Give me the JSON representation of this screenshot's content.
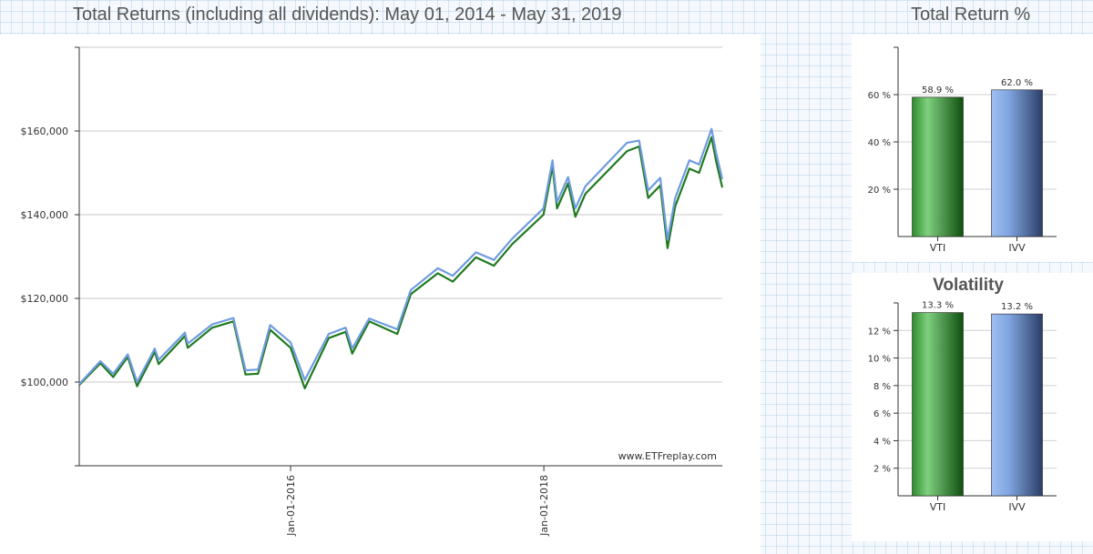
{
  "main": {
    "title": "Total Returns (including all dividends): May 01, 2014 - May 31, 2019",
    "watermark": "www.ETFreplay.com"
  },
  "total_return": {
    "title": "Total Return %"
  },
  "volatility": {
    "title": "Volatility"
  },
  "colors": {
    "VTI": "#1f7a1f",
    "IVV": "#6f9be0"
  },
  "chart_data": [
    {
      "type": "line",
      "title": "Total Returns (including all dividends): May 01, 2014 - May 31, 2019",
      "x_range": [
        "2014-05-01",
        "2019-05-31"
      ],
      "x_ticks": [
        "Jan-01-2016",
        "Jan-01-2018"
      ],
      "y_ticks": [
        100000,
        120000,
        140000,
        160000
      ],
      "y_tick_labels": [
        "$100,000",
        "$120,000",
        "$140,000",
        "$160,000"
      ],
      "ylim": [
        80000,
        180000
      ],
      "grid": true,
      "series": [
        {
          "name": "VTI",
          "points": [
            [
              "2014-05-01",
              99300
            ],
            [
              "2014-07-01",
              104500
            ],
            [
              "2014-08-07",
              101200
            ],
            [
              "2014-09-18",
              106000
            ],
            [
              "2014-10-15",
              99000
            ],
            [
              "2014-12-05",
              107200
            ],
            [
              "2014-12-16",
              104300
            ],
            [
              "2015-03-02",
              111000
            ],
            [
              "2015-03-10",
              108200
            ],
            [
              "2015-05-20",
              113000
            ],
            [
              "2015-07-20",
              114500
            ],
            [
              "2015-08-24",
              101800
            ],
            [
              "2015-09-29",
              102000
            ],
            [
              "2015-11-03",
              112500
            ],
            [
              "2016-01-01",
              108200
            ],
            [
              "2016-02-11",
              98500
            ],
            [
              "2016-04-20",
              110500
            ],
            [
              "2016-06-08",
              112000
            ],
            [
              "2016-06-27",
              106800
            ],
            [
              "2016-08-15",
              114500
            ],
            [
              "2016-11-04",
              111500
            ],
            [
              "2016-12-13",
              121000
            ],
            [
              "2017-03-01",
              126000
            ],
            [
              "2017-04-13",
              124000
            ],
            [
              "2017-06-19",
              129800
            ],
            [
              "2017-08-10",
              127800
            ],
            [
              "2017-10-02",
              133000
            ],
            [
              "2017-12-31",
              140000
            ],
            [
              "2018-01-26",
              151500
            ],
            [
              "2018-02-08",
              141500
            ],
            [
              "2018-03-12",
              147500
            ],
            [
              "2018-04-02",
              139500
            ],
            [
              "2018-05-01",
              145000
            ],
            [
              "2018-08-29",
              155200
            ],
            [
              "2018-10-03",
              156300
            ],
            [
              "2018-10-29",
              144000
            ],
            [
              "2018-12-03",
              147000
            ],
            [
              "2018-12-24",
              132000
            ],
            [
              "2019-01-15",
              142000
            ],
            [
              "2019-02-25",
              151000
            ],
            [
              "2019-03-25",
              150000
            ],
            [
              "2019-04-30",
              158500
            ],
            [
              "2019-05-14",
              152500
            ],
            [
              "2019-05-31",
              146500
            ]
          ]
        },
        {
          "name": "IVV",
          "points": [
            [
              "2014-05-01",
              99500
            ],
            [
              "2014-07-01",
              105000
            ],
            [
              "2014-08-07",
              102000
            ],
            [
              "2014-09-18",
              106600
            ],
            [
              "2014-10-15",
              100000
            ],
            [
              "2014-12-05",
              108000
            ],
            [
              "2014-12-16",
              105300
            ],
            [
              "2015-03-02",
              111800
            ],
            [
              "2015-03-10",
              109200
            ],
            [
              "2015-05-20",
              113800
            ],
            [
              "2015-07-20",
              115300
            ],
            [
              "2015-08-24",
              102800
            ],
            [
              "2015-09-29",
              103000
            ],
            [
              "2015-11-03",
              113600
            ],
            [
              "2016-01-01",
              109500
            ],
            [
              "2016-02-11",
              100500
            ],
            [
              "2016-04-20",
              111500
            ],
            [
              "2016-06-08",
              113000
            ],
            [
              "2016-06-27",
              108000
            ],
            [
              "2016-08-15",
              115200
            ],
            [
              "2016-11-04",
              112600
            ],
            [
              "2016-12-13",
              122000
            ],
            [
              "2017-03-01",
              127200
            ],
            [
              "2017-04-13",
              125400
            ],
            [
              "2017-06-19",
              131000
            ],
            [
              "2017-08-10",
              129200
            ],
            [
              "2017-10-02",
              134300
            ],
            [
              "2017-12-31",
              141500
            ],
            [
              "2018-01-26",
              153000
            ],
            [
              "2018-02-08",
              143000
            ],
            [
              "2018-03-12",
              149000
            ],
            [
              "2018-04-02",
              141500
            ],
            [
              "2018-05-01",
              146800
            ],
            [
              "2018-08-29",
              157200
            ],
            [
              "2018-10-03",
              157700
            ],
            [
              "2018-10-29",
              145800
            ],
            [
              "2018-12-03",
              148800
            ],
            [
              "2018-12-24",
              134000
            ],
            [
              "2019-01-15",
              144000
            ],
            [
              "2019-02-25",
              153000
            ],
            [
              "2019-03-25",
              152000
            ],
            [
              "2019-04-30",
              160500
            ],
            [
              "2019-05-14",
              154500
            ],
            [
              "2019-05-31",
              148500
            ]
          ]
        }
      ]
    },
    {
      "type": "bar",
      "title": "Total Return %",
      "categories": [
        "VTI",
        "IVV"
      ],
      "values": [
        58.9,
        62.0
      ],
      "value_labels": [
        "58.9 %",
        "62.0 %"
      ],
      "y_ticks": [
        20,
        40,
        60
      ],
      "y_tick_labels": [
        "20 %",
        "40 %",
        "60 %"
      ],
      "ylim": [
        0,
        80
      ]
    },
    {
      "type": "bar",
      "title": "Volatility",
      "categories": [
        "VTI",
        "IVV"
      ],
      "values": [
        13.3,
        13.2
      ],
      "value_labels": [
        "13.3 %",
        "13.2 %"
      ],
      "y_ticks": [
        2,
        4,
        6,
        8,
        10,
        12
      ],
      "y_tick_labels": [
        "2 %",
        "4 %",
        "6 %",
        "8 %",
        "10 %",
        "12 %"
      ],
      "ylim": [
        0,
        14
      ]
    }
  ]
}
